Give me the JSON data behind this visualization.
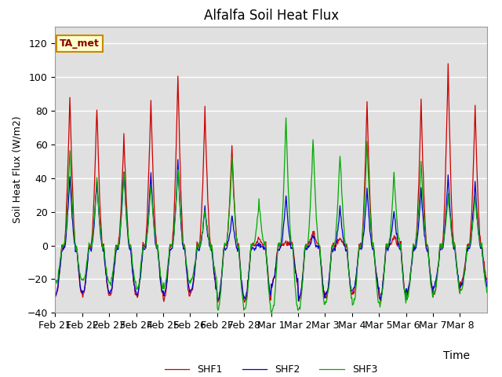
{
  "title": "Alfalfa Soil Heat Flux",
  "xlabel": "Time",
  "ylabel": "Soil Heat Flux (W/m2)",
  "ylim": [
    -40,
    130
  ],
  "yticks": [
    -40,
    -20,
    0,
    20,
    40,
    60,
    80,
    100,
    120
  ],
  "annotation_text": "TA_met",
  "legend_labels": [
    "SHF1",
    "SHF2",
    "SHF3"
  ],
  "line_colors": [
    "#cc0000",
    "#0000cc",
    "#00aa00"
  ],
  "bg_color": "#e0e0e0",
  "fig_bg": "#ffffff",
  "n_days": 16,
  "date_labels": [
    "Feb 21",
    "Feb 22",
    "Feb 23",
    "Feb 24",
    "Feb 25",
    "Feb 26",
    "Feb 27",
    "Feb 28",
    "Mar 1",
    "Mar 2",
    "Mar 3",
    "Mar 4",
    "Mar 5",
    "Mar 6",
    "Mar 7",
    "Mar 8"
  ],
  "peaks_shf1": [
    89,
    83,
    65,
    87,
    101,
    81,
    58,
    4,
    2,
    9,
    5,
    85,
    5,
    85,
    107,
    83
  ],
  "peaks_shf2": [
    35,
    33,
    44,
    37,
    44,
    15,
    13,
    3,
    37,
    7,
    27,
    27,
    26,
    27,
    33,
    33
  ],
  "peaks_shf3": [
    57,
    41,
    45,
    36,
    46,
    22,
    52,
    25,
    75,
    64,
    56,
    61,
    44,
    50,
    30,
    29
  ],
  "troughs_shf1": [
    -30,
    -29,
    -30,
    -30,
    -32,
    -28,
    -33,
    -33,
    -23,
    -33,
    -30,
    -28,
    -32,
    -29,
    -28,
    -22
  ],
  "troughs_shf2": [
    -26,
    -25,
    -26,
    -27,
    -26,
    -24,
    -29,
    -28,
    -20,
    -29,
    -26,
    -24,
    -29,
    -25,
    -21,
    -22
  ],
  "troughs_shf3": [
    -22,
    -22,
    -23,
    -26,
    -24,
    -21,
    -38,
    -38,
    -40,
    -38,
    -33,
    -35,
    -35,
    -31,
    -28,
    -27
  ]
}
